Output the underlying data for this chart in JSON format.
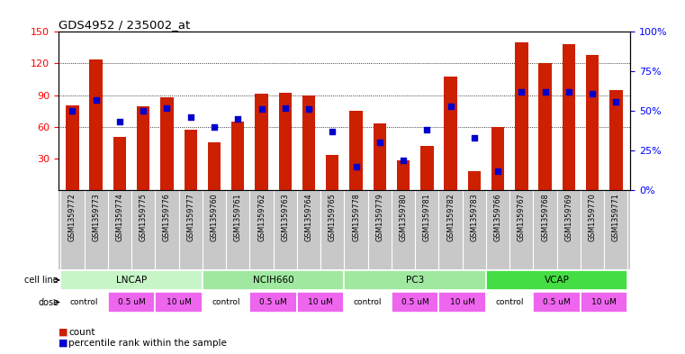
{
  "title": "GDS4952 / 235002_at",
  "samples": [
    "GSM1359772",
    "GSM1359773",
    "GSM1359774",
    "GSM1359775",
    "GSM1359776",
    "GSM1359777",
    "GSM1359760",
    "GSM1359761",
    "GSM1359762",
    "GSM1359763",
    "GSM1359764",
    "GSM1359765",
    "GSM1359778",
    "GSM1359779",
    "GSM1359780",
    "GSM1359781",
    "GSM1359782",
    "GSM1359783",
    "GSM1359766",
    "GSM1359767",
    "GSM1359768",
    "GSM1359769",
    "GSM1359770",
    "GSM1359771"
  ],
  "counts": [
    80,
    124,
    50,
    79,
    88,
    57,
    45,
    65,
    91,
    92,
    90,
    33,
    75,
    63,
    28,
    42,
    108,
    18,
    60,
    140,
    120,
    138,
    128,
    95
  ],
  "percentiles": [
    50,
    57,
    43,
    50,
    52,
    46,
    40,
    45,
    51,
    52,
    51,
    37,
    15,
    30,
    19,
    38,
    53,
    33,
    12,
    62,
    62,
    62,
    61,
    56
  ],
  "bar_color": "#CC2000",
  "dot_color": "#0000CC",
  "ylim_left": [
    0,
    150
  ],
  "ylim_right": [
    0,
    100
  ],
  "yticks_left": [
    30,
    60,
    90,
    120,
    150
  ],
  "yticks_right": [
    0,
    25,
    50,
    75,
    100
  ],
  "ytick_labels_right": [
    "0%",
    "25%",
    "50%",
    "75%",
    "100%"
  ],
  "grid_values": [
    60,
    90,
    120
  ],
  "cell_lines": [
    {
      "name": "LNCAP",
      "start": 0,
      "end": 6,
      "color": "#C8F5C8"
    },
    {
      "name": "NCIH660",
      "start": 6,
      "end": 12,
      "color": "#A0E8A0"
    },
    {
      "name": "PC3",
      "start": 12,
      "end": 18,
      "color": "#A0E8A0"
    },
    {
      "name": "VCAP",
      "start": 18,
      "end": 24,
      "color": "#44DD44"
    }
  ],
  "doses": [
    {
      "label": "control",
      "start": 0,
      "end": 2,
      "color": "#FFFFFF"
    },
    {
      "label": "0.5 uM",
      "start": 2,
      "end": 4,
      "color": "#EE66EE"
    },
    {
      "label": "10 uM",
      "start": 4,
      "end": 6,
      "color": "#EE66EE"
    },
    {
      "label": "control",
      "start": 6,
      "end": 8,
      "color": "#FFFFFF"
    },
    {
      "label": "0.5 uM",
      "start": 8,
      "end": 10,
      "color": "#EE66EE"
    },
    {
      "label": "10 uM",
      "start": 10,
      "end": 12,
      "color": "#EE66EE"
    },
    {
      "label": "control",
      "start": 12,
      "end": 14,
      "color": "#FFFFFF"
    },
    {
      "label": "0.5 uM",
      "start": 14,
      "end": 16,
      "color": "#EE66EE"
    },
    {
      "label": "10 uM",
      "start": 16,
      "end": 18,
      "color": "#EE66EE"
    },
    {
      "label": "control",
      "start": 18,
      "end": 20,
      "color": "#FFFFFF"
    },
    {
      "label": "0.5 uM",
      "start": 20,
      "end": 22,
      "color": "#EE66EE"
    },
    {
      "label": "10 uM",
      "start": 22,
      "end": 24,
      "color": "#EE66EE"
    }
  ],
  "grey_strip_color": "#C8C8C8",
  "legend_count_color": "#CC2000",
  "legend_dot_color": "#0000CC"
}
